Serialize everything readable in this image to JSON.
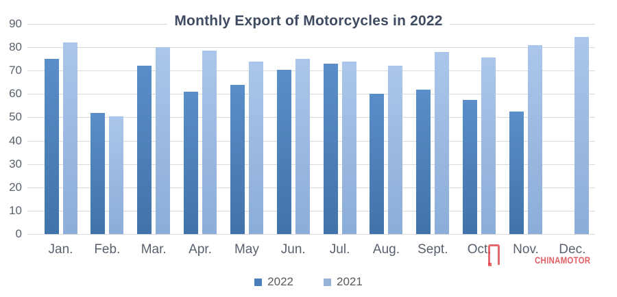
{
  "chart_data": {
    "type": "bar",
    "title": "Monthly Export of Motorcycles in 2022",
    "categories": [
      "Jan.",
      "Feb.",
      "Mar.",
      "Apr.",
      "May",
      "Jun.",
      "Jul.",
      "Aug.",
      "Sept.",
      "Oct.",
      "Nov.",
      "Dec."
    ],
    "series": [
      {
        "name": "2022",
        "values": [
          75,
          52,
          72,
          61,
          64,
          70.5,
          73,
          60,
          62,
          57.5,
          52.5,
          null
        ],
        "color_top": "#5a8ec8",
        "color_bottom": "#4173ab",
        "legend_color": "#4a7ebc"
      },
      {
        "name": "2021",
        "values": [
          82,
          50.5,
          80,
          78.5,
          74,
          75,
          74,
          72,
          78,
          75.5,
          81,
          84.5
        ],
        "color_top": "#abc6ea",
        "color_bottom": "#8badd8",
        "legend_color": "#95b3d7"
      }
    ],
    "xlabel": "",
    "ylabel": "",
    "ylim": [
      0,
      90
    ],
    "ytick_step": 10,
    "grid": true,
    "gridline_color": "#d9d9d9",
    "legend_position": "bottom"
  },
  "watermark": {
    "text": "CHINAMOTOR",
    "color": "#d93c42",
    "logo": "gate-logo-icon"
  }
}
